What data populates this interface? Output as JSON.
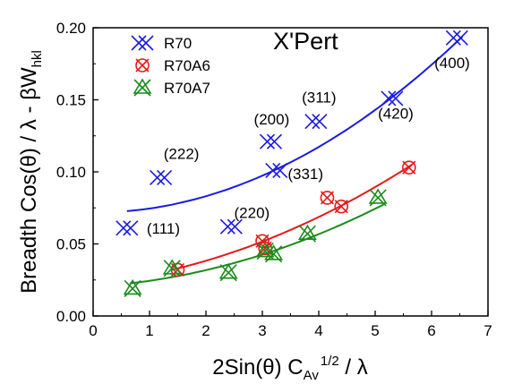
{
  "chart_data": {
    "type": "scatter",
    "title": "X'Pert",
    "xlabel": {
      "prefix": "2Sin(θ) C",
      "sub": "Av",
      "sup": "1/2",
      "suffix": " / λ"
    },
    "ylabel": {
      "main": "Breadth Cos(θ) / λ - βW",
      "sub": "hkl"
    },
    "xlim": [
      0,
      7
    ],
    "ylim": [
      0,
      0.2
    ],
    "xticks": [
      "0",
      "1",
      "2",
      "3",
      "4",
      "5",
      "6",
      "7"
    ],
    "yticks": [
      "0.00",
      "0.05",
      "0.10",
      "0.15",
      "0.20"
    ],
    "legend_position": "top-left",
    "series": [
      {
        "name": "R70",
        "color": "#1a1ae6",
        "marker": "cross-x",
        "points": [
          {
            "x": 0.6,
            "y": 0.061
          },
          {
            "x": 1.2,
            "y": 0.096
          },
          {
            "x": 2.45,
            "y": 0.062
          },
          {
            "x": 3.15,
            "y": 0.121
          },
          {
            "x": 3.25,
            "y": 0.101
          },
          {
            "x": 3.95,
            "y": 0.135
          },
          {
            "x": 5.3,
            "y": 0.151
          },
          {
            "x": 6.45,
            "y": 0.193
          }
        ],
        "fit": {
          "x_start": 0.6,
          "x_end": 6.55,
          "coef": [
            0.0717,
            0.0,
            0.00285
          ]
        }
      },
      {
        "name": "R70A6",
        "color": "#e61a1a",
        "marker": "circle-x",
        "points": [
          {
            "x": 1.5,
            "y": 0.032
          },
          {
            "x": 3.0,
            "y": 0.052
          },
          {
            "x": 3.05,
            "y": 0.047
          },
          {
            "x": 4.15,
            "y": 0.082
          },
          {
            "x": 4.4,
            "y": 0.076
          },
          {
            "x": 5.6,
            "y": 0.103
          }
        ],
        "fit": {
          "x_start": 1.4,
          "x_end": 5.65,
          "coef": [
            0.0227,
            0.0041,
            0.00185
          ]
        }
      },
      {
        "name": "R70A7",
        "color": "#1a8c1a",
        "marker": "triangle-x",
        "points": [
          {
            "x": 0.7,
            "y": 0.019
          },
          {
            "x": 1.4,
            "y": 0.033
          },
          {
            "x": 2.4,
            "y": 0.03
          },
          {
            "x": 3.05,
            "y": 0.045
          },
          {
            "x": 3.2,
            "y": 0.043
          },
          {
            "x": 3.8,
            "y": 0.057
          },
          {
            "x": 5.05,
            "y": 0.082
          }
        ],
        "fit": {
          "x_start": 0.65,
          "x_end": 5.15,
          "coef": [
            0.0204,
            0.0023,
            0.0017
          ]
        }
      }
    ],
    "annotations": [
      {
        "text": "(111)",
        "x": 0.95,
        "y": 0.057
      },
      {
        "text": "(222)",
        "x": 1.25,
        "y": 0.109
      },
      {
        "text": "(220)",
        "x": 2.5,
        "y": 0.068
      },
      {
        "text": "(200)",
        "x": 2.85,
        "y": 0.133
      },
      {
        "text": "(331)",
        "x": 3.45,
        "y": 0.095
      },
      {
        "text": "(311)",
        "x": 3.7,
        "y": 0.148
      },
      {
        "text": "(420)",
        "x": 5.05,
        "y": 0.137
      },
      {
        "text": "(400)",
        "x": 6.05,
        "y": 0.172
      }
    ]
  }
}
